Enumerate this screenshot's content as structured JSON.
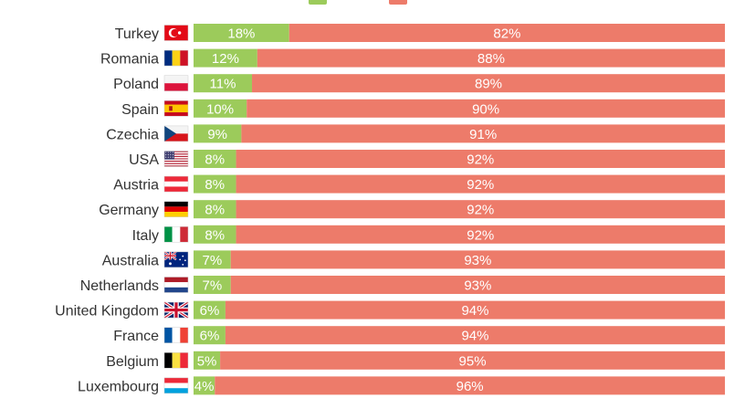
{
  "chart_data": {
    "type": "bar",
    "orientation": "horizontal",
    "stacked": true,
    "percent_scale": true,
    "categories": [
      "Turkey",
      "Romania",
      "Poland",
      "Spain",
      "Czechia",
      "USA",
      "Austria",
      "Germany",
      "Italy",
      "Australia",
      "Netherlands",
      "United Kingdom",
      "France",
      "Belgium",
      "Luxembourg"
    ],
    "series": [
      {
        "name": "",
        "color": "#9ccb5b",
        "values": [
          18,
          12,
          11,
          10,
          9,
          8,
          8,
          8,
          8,
          7,
          7,
          6,
          6,
          5,
          4
        ]
      },
      {
        "name": "",
        "color": "#ed7b6a",
        "values": [
          82,
          88,
          89,
          90,
          91,
          92,
          92,
          92,
          92,
          93,
          93,
          94,
          94,
          95,
          96
        ]
      }
    ],
    "value_suffix": "%",
    "xlim": [
      0,
      100
    ],
    "flags": [
      "flag-turkey",
      "flag-romania",
      "flag-poland",
      "flag-spain",
      "flag-czechia",
      "flag-usa",
      "flag-austria",
      "flag-germany",
      "flag-italy",
      "flag-australia",
      "flag-netherlands",
      "flag-united-kingdom",
      "flag-france",
      "flag-belgium",
      "flag-luxembourg"
    ],
    "legend": {
      "position": "top"
    },
    "grid": false
  }
}
